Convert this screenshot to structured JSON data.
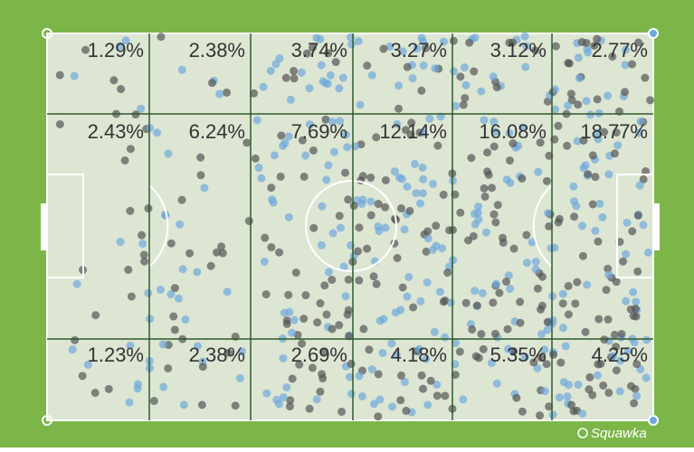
{
  "chart_data": {
    "type": "heatmap",
    "values": [
      [
        1.29,
        2.38,
        3.74,
        3.27,
        3.12,
        2.77
      ],
      [
        2.43,
        6.24,
        7.69,
        12.14,
        16.08,
        18.77
      ],
      [
        1.23,
        2.38,
        2.69,
        4.18,
        5.35,
        4.25
      ]
    ],
    "value_labels": [
      [
        "1.29%",
        "2.38%",
        "3.74%",
        "3.27%",
        "3.12%",
        "2.77%"
      ],
      [
        "2.43%",
        "6.24%",
        "7.69%",
        "12.14%",
        "16.08%",
        "18.77%"
      ],
      [
        "1.23%",
        "2.38%",
        "2.69%",
        "4.18%",
        "5.35%",
        "4.25%"
      ]
    ],
    "watermark": "Squawka"
  }
}
